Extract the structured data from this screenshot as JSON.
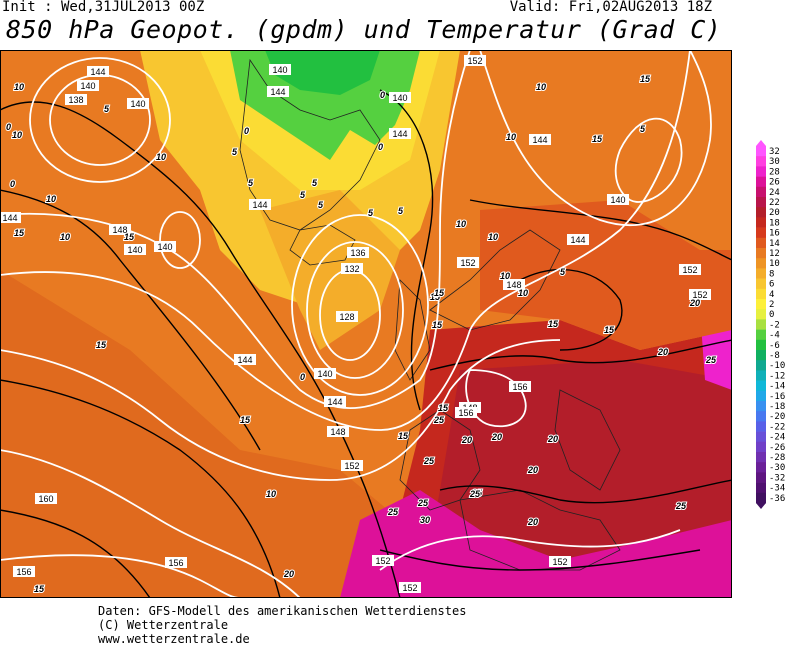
{
  "header": {
    "init": "Init : Wed,31JUL2013 00Z",
    "valid": "Valid: Fri,02AUG2013 18Z",
    "title": "850 hPa Geopot. (gpdm) und Temperatur (Grad C)"
  },
  "colorbar": {
    "labels": [
      "32",
      "30",
      "28",
      "26",
      "24",
      "22",
      "20",
      "18",
      "16",
      "14",
      "12",
      "10",
      "8",
      "6",
      "4",
      "2",
      "0",
      "-2",
      "-4",
      "-6",
      "-8",
      "-10",
      "-12",
      "-14",
      "-16",
      "-18",
      "-20",
      "-22",
      "-24",
      "-26",
      "-28",
      "-30",
      "-32",
      "-34",
      "-36"
    ],
    "colors": [
      "#ff55ff",
      "#ff3fe0",
      "#ee22cc",
      "#dd1199",
      "#c8106e",
      "#b8154a",
      "#b31e2a",
      "#c5281e",
      "#d63a1c",
      "#e05a1e",
      "#e87a22",
      "#ee9424",
      "#f4ad2a",
      "#f8c630",
      "#fbdc34",
      "#fdf03a",
      "#e6f040",
      "#a8e040",
      "#55d040",
      "#22c040",
      "#10b060",
      "#10a890",
      "#10b0b8",
      "#10b8d8",
      "#20a8e8",
      "#3890f0",
      "#4878f0",
      "#5860e8",
      "#6850d8",
      "#7040c8",
      "#7030b0",
      "#6a2098",
      "#5e1580",
      "#501070",
      "#401060"
    ]
  },
  "map": {
    "height_labels": [
      "144",
      "140",
      "138",
      "140",
      "148",
      "144",
      "144",
      "140",
      "152",
      "140",
      "144",
      "136",
      "132",
      "128",
      "144",
      "140",
      "144",
      "148",
      "152",
      "160",
      "156",
      "156",
      "152",
      "152",
      "144",
      "152",
      "148",
      "152",
      "148",
      "156",
      "156",
      "140",
      "144",
      "144",
      "140",
      "140",
      "152",
      "152"
    ],
    "temp_labels": [
      "10",
      "10",
      "0",
      "5",
      "0",
      "10",
      "15",
      "10",
      "15",
      "5",
      "5",
      "0",
      "0",
      "5",
      "5",
      "0",
      "5",
      "10",
      "10",
      "15",
      "15",
      "15",
      "10",
      "10",
      "15",
      "15",
      "15",
      "20",
      "25",
      "25",
      "25",
      "25",
      "25",
      "30",
      "20",
      "20",
      "20",
      "20",
      "15",
      "25",
      "25",
      "25",
      "20",
      "15",
      "20",
      "20",
      "15",
      "5",
      "0",
      "5",
      "15",
      "10",
      "10",
      "10",
      "15",
      "5",
      "15",
      "5",
      "10"
    ]
  },
  "footer": {
    "line1": "Daten: GFS-Modell des amerikanischen Wetterdienstes",
    "line2": "(C) Wetterzentrale",
    "line3": "www.wetterzentrale.de"
  }
}
